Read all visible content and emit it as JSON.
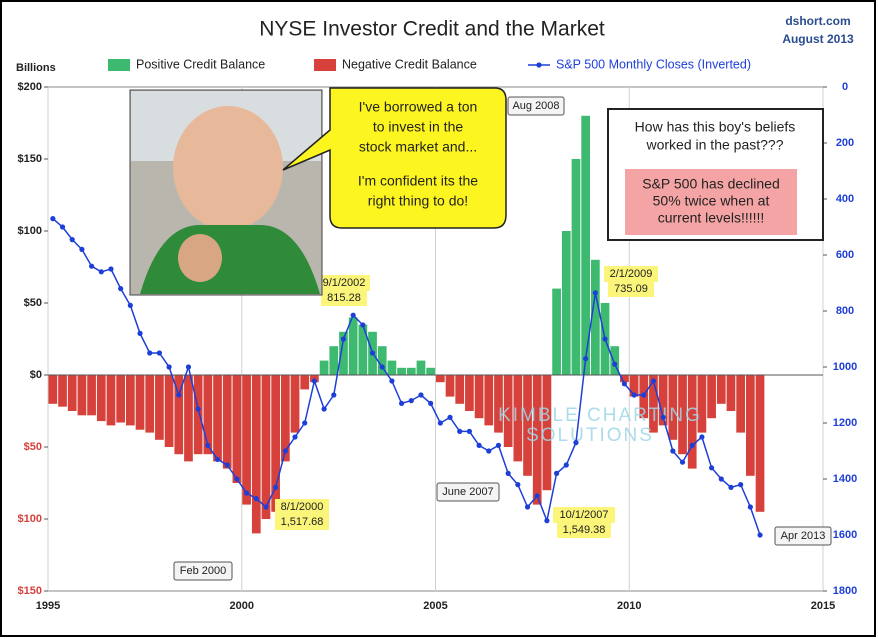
{
  "chart_data": {
    "type": "bar",
    "title": "NYSE Investor Credit and the Market",
    "source": "dshort.com",
    "date": "August 2013",
    "ylabel": "Billions",
    "x": [
      1995,
      1995.25,
      1995.5,
      1995.75,
      1996,
      1996.25,
      1996.5,
      1996.75,
      1997,
      1997.25,
      1997.5,
      1997.75,
      1998,
      1998.25,
      1998.5,
      1998.75,
      1999,
      1999.25,
      1999.5,
      1999.75,
      2000,
      2000.25,
      2000.5,
      2000.75,
      2001,
      2001.25,
      2001.5,
      2001.75,
      2002,
      2002.25,
      2002.5,
      2002.75,
      2003,
      2003.25,
      2003.5,
      2003.75,
      2004,
      2004.25,
      2004.5,
      2004.75,
      2005,
      2005.25,
      2005.5,
      2005.75,
      2006,
      2006.25,
      2006.5,
      2006.75,
      2007,
      2007.25,
      2007.5,
      2007.75,
      2008,
      2008.25,
      2008.5,
      2008.75,
      2009,
      2009.25,
      2009.5,
      2009.75,
      2010,
      2010.25,
      2010.5,
      2010.75,
      2011,
      2011.25,
      2011.5,
      2011.75,
      2012,
      2012.25,
      2012.5,
      2012.75,
      2013,
      2013.25
    ],
    "series": [
      {
        "name": "Positive Credit Balance",
        "color": "#3dba6f",
        "values": [
          null,
          null,
          null,
          null,
          null,
          null,
          null,
          null,
          null,
          null,
          null,
          null,
          null,
          null,
          null,
          null,
          null,
          null,
          null,
          null,
          null,
          null,
          null,
          null,
          null,
          null,
          null,
          null,
          10,
          20,
          30,
          40,
          35,
          30,
          20,
          10,
          5,
          5,
          10,
          5,
          null,
          null,
          null,
          null,
          null,
          null,
          null,
          null,
          null,
          null,
          null,
          null,
          60,
          100,
          150,
          180,
          80,
          50,
          20,
          null,
          null,
          null,
          null,
          null,
          null,
          null,
          null,
          null,
          null,
          null,
          null,
          null,
          null,
          null
        ]
      },
      {
        "name": "Negative Credit Balance",
        "color": "#d6413b",
        "values": [
          -20,
          -22,
          -25,
          -28,
          -28,
          -32,
          -35,
          -33,
          -35,
          -38,
          -40,
          -45,
          -50,
          -55,
          -60,
          -55,
          -55,
          -60,
          -65,
          -75,
          -90,
          -110,
          -100,
          -95,
          -60,
          -40,
          -10,
          -5,
          null,
          null,
          null,
          null,
          null,
          null,
          null,
          null,
          null,
          null,
          null,
          null,
          -5,
          -15,
          -20,
          -25,
          -30,
          -35,
          -40,
          -50,
          -60,
          -70,
          -90,
          -80,
          null,
          null,
          null,
          null,
          null,
          null,
          null,
          -5,
          -15,
          -30,
          -40,
          -35,
          -45,
          -55,
          -65,
          -40,
          -30,
          -20,
          -25,
          -40,
          -70,
          -95
        ]
      },
      {
        "name": "S&P 500 Monthly Closes (Inverted)",
        "color": "#1d3fd8",
        "axis": "y2",
        "type": "line",
        "values": [
          470,
          500,
          545,
          580,
          640,
          660,
          650,
          720,
          780,
          880,
          950,
          950,
          1000,
          1100,
          1000,
          1150,
          1280,
          1330,
          1350,
          1400,
          1450,
          1470,
          1500,
          1430,
          1300,
          1250,
          1200,
          1050,
          1150,
          1100,
          900,
          815,
          850,
          950,
          1000,
          1050,
          1130,
          1120,
          1100,
          1130,
          1200,
          1180,
          1230,
          1230,
          1280,
          1300,
          1280,
          1380,
          1420,
          1500,
          1460,
          1549,
          1380,
          1350,
          1270,
          970,
          735,
          900,
          990,
          1060,
          1100,
          1100,
          1050,
          1180,
          1300,
          1340,
          1280,
          1250,
          1360,
          1400,
          1430,
          1420,
          1500,
          1600
        ]
      }
    ],
    "xlim": [
      1995,
      2015
    ],
    "xticks": [
      1995,
      2000,
      2005,
      2010,
      2015
    ],
    "ylim": [
      -150,
      200
    ],
    "yticks": [
      {
        "value": -150,
        "label": "$150"
      },
      {
        "value": -100,
        "label": "$100"
      },
      {
        "value": -50,
        "label": "$50"
      },
      {
        "value": 0,
        "label": "$0"
      },
      {
        "value": 50,
        "label": "$50"
      },
      {
        "value": 100,
        "label": "$100"
      },
      {
        "value": 150,
        "label": "$150"
      },
      {
        "value": 200,
        "label": "$200"
      }
    ],
    "y2lim": [
      0,
      1800
    ],
    "y2ticks": [
      0,
      200,
      400,
      600,
      800,
      1000,
      1200,
      1400,
      1600,
      1800
    ],
    "y2_inverted": true,
    "annotations": [
      "Aug 2008",
      "9/1/2002",
      "815.28",
      "2/1/2009",
      "735.09",
      "8/1/2000",
      "1,517.68",
      "10/1/2007",
      "1,549.38",
      "June 2007",
      "Feb 2000",
      "Apr 2013"
    ]
  },
  "callouts": {
    "speech": [
      "I've borrowed a ton",
      "to invest in the",
      "stock market and...",
      "I'm confident its the",
      "right thing to do!"
    ],
    "question": [
      "How has this boy's beliefs",
      "worked in the past???"
    ],
    "warning": [
      "S&P 500 has declined",
      "50% twice when at",
      "current levels!!!!!!"
    ]
  },
  "watermark": [
    "KIMBLE CHARTING",
    "SOLUTIONS"
  ]
}
